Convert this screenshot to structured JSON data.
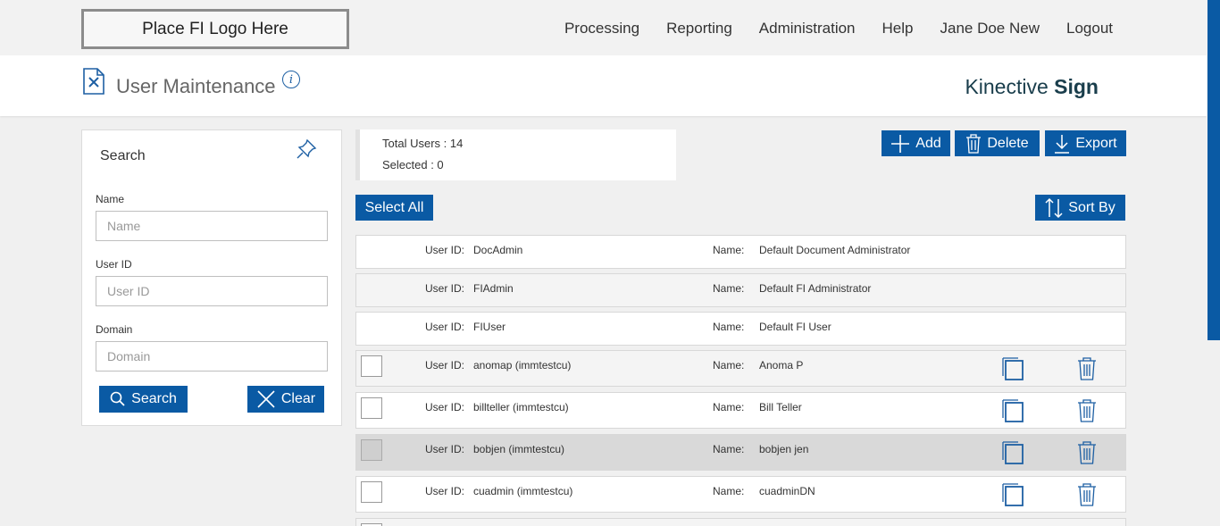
{
  "logo_text": "Place FI Logo Here",
  "nav": [
    "Processing",
    "Reporting",
    "Administration",
    "Help",
    "Jane Doe New",
    "Logout"
  ],
  "page_title": "User Maintenance",
  "brand": {
    "light": "Kinective",
    "bold": "Sign"
  },
  "search": {
    "title": "Search",
    "name_label": "Name",
    "name_placeholder": "Name",
    "userid_label": "User ID",
    "userid_placeholder": "User ID",
    "domain_label": "Domain",
    "domain_placeholder": "Domain",
    "search_btn": "Search",
    "clear_btn": "Clear"
  },
  "counts": {
    "total": "Total Users : 14",
    "selected": "Selected : 0"
  },
  "actions": {
    "add": "Add",
    "delete": "Delete",
    "export": "Export",
    "select_all": "Select All",
    "sort_by": "Sort By"
  },
  "row_labels": {
    "user_id": "User ID:",
    "name": "Name:"
  },
  "users": [
    {
      "user_id": "DocAdmin",
      "name": "Default Document Administrator",
      "selectable": false
    },
    {
      "user_id": "FIAdmin",
      "name": "Default FI Administrator",
      "selectable": false
    },
    {
      "user_id": "FIUser",
      "name": "Default FI User",
      "selectable": false
    },
    {
      "user_id": "anomap (immtestcu)",
      "name": "Anoma P",
      "selectable": true
    },
    {
      "user_id": "billteller (immtestcu)",
      "name": "Bill Teller",
      "selectable": true
    },
    {
      "user_id": "bobjen (immtestcu)",
      "name": "bobjen jen",
      "selectable": true
    },
    {
      "user_id": "cuadmin (immtestcu)",
      "name": "cuadminDN",
      "selectable": true
    }
  ]
}
